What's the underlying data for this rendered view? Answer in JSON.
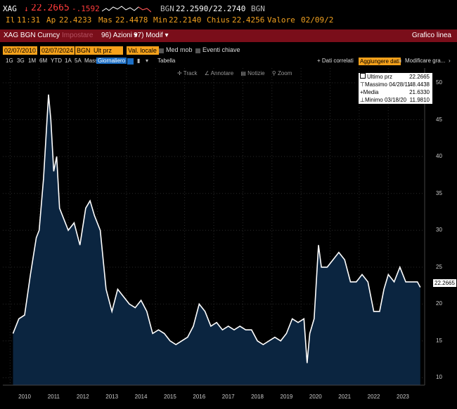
{
  "quote": {
    "ticker": "XAG",
    "arrow": "↓",
    "price": "22.2665",
    "change": "-.1592",
    "bidask_label": "BGN",
    "bidask": "22.2590/22.2740",
    "src": "BGN"
  },
  "stats": {
    "time": "11:31",
    "time_label": "Il",
    "open_label": "Ap",
    "open": "22.4233",
    "high_label": "Mas",
    "high": "22.4478",
    "low_label": "Min",
    "low": "22.2140",
    "close_label": "Chius",
    "close": "22.4256",
    "value_label": "Valore",
    "value": "02/09/2"
  },
  "menubar": {
    "security": "XAG BGN Curncy",
    "settings_hint": "Impostare",
    "actions": "Azioni",
    "modify": "Modif",
    "actions_num": "96)",
    "modify_num": "97)",
    "right_title": "Grafico linea"
  },
  "params": {
    "date_from": "02/07/2010",
    "date_to": "02/07/2024",
    "source": "BGN",
    "field": "Ult prz",
    "currency": "Val. locale",
    "moving_avg": "Med mob",
    "key_events": "Eventi chiave"
  },
  "toolbar": {
    "ranges": [
      "1G",
      "3G",
      "1M",
      "6M",
      "YTD",
      "1A",
      "5A",
      "Mass"
    ],
    "period": "Giornaliero",
    "table": "Tabella",
    "related": "+ Dati correlati",
    "add_data": "Aggiungere dati",
    "modify_chart": "Modificare gra..."
  },
  "tools": {
    "track": "Track",
    "annotate": "Annotare",
    "news": "Notizie",
    "zoom": "Zoom"
  },
  "legend": {
    "last_label": "Ultimo prz",
    "last_value": "22.2665",
    "high_label": "Massimo 04/28/11",
    "high_value": "48.4438",
    "avg_label": "Media",
    "avg_value": "21.6330",
    "low_label": "Minimo 03/18/20",
    "low_value": "11.9810"
  },
  "last_price_tag": "22.2665",
  "colors": {
    "background": "#000000",
    "area_fill": "#0b2540",
    "line": "#ffffff",
    "menubar": "#7a0e1a",
    "accent_orange": "#f7a21b",
    "down": "#ff3b3b"
  },
  "chart_data": {
    "type": "area",
    "series": [
      {
        "name": "Ultimo prz",
        "x": [
          2010.1,
          2010.3,
          2010.5,
          2010.7,
          2010.9,
          2011.0,
          2011.15,
          2011.32,
          2011.4,
          2011.5,
          2011.6,
          2011.7,
          2011.8,
          2012.0,
          2012.2,
          2012.4,
          2012.6,
          2012.75,
          2012.9,
          2013.1,
          2013.3,
          2013.5,
          2013.7,
          2013.9,
          2014.1,
          2014.3,
          2014.5,
          2014.7,
          2014.9,
          2015.1,
          2015.3,
          2015.5,
          2015.7,
          2015.9,
          2016.1,
          2016.3,
          2016.5,
          2016.7,
          2016.9,
          2017.1,
          2017.3,
          2017.5,
          2017.7,
          2017.9,
          2018.1,
          2018.3,
          2018.5,
          2018.7,
          2018.9,
          2019.1,
          2019.3,
          2019.5,
          2019.7,
          2019.9,
          2020.1,
          2020.21,
          2020.3,
          2020.45,
          2020.6,
          2020.7,
          2020.9,
          2021.1,
          2021.3,
          2021.5,
          2021.7,
          2021.9,
          2022.1,
          2022.3,
          2022.5,
          2022.7,
          2022.85,
          2023.0,
          2023.2,
          2023.4,
          2023.6,
          2023.8,
          2024.0,
          2024.1
        ],
        "y": [
          16,
          18,
          18.5,
          24,
          29,
          30,
          37,
          48.4,
          45,
          38,
          40,
          33,
          32,
          30,
          31,
          28,
          33,
          34,
          32,
          30,
          22,
          19,
          22,
          21,
          20,
          19.5,
          20.5,
          19,
          16,
          16.5,
          16,
          15,
          14.5,
          15,
          15.5,
          17,
          20,
          19,
          17,
          17.5,
          16.5,
          17,
          16.5,
          17,
          16.5,
          16.5,
          15,
          14.5,
          15,
          15.5,
          15,
          16,
          18,
          17.5,
          18,
          12,
          16,
          18,
          28,
          25,
          25,
          26,
          27,
          26,
          23,
          23,
          24,
          23,
          19,
          19,
          22,
          24,
          23,
          25,
          23,
          23,
          23,
          22.27
        ]
      }
    ],
    "xlim": [
      2009.75,
      2024.25
    ],
    "ylim": [
      9,
      52
    ],
    "yticks": [
      10,
      15,
      20,
      25,
      30,
      35,
      40,
      45,
      50
    ],
    "xticks": [
      "2010",
      "2011",
      "2012",
      "2013",
      "2014",
      "2015",
      "2016",
      "2017",
      "2018",
      "2019",
      "2020",
      "2021",
      "2022",
      "2023"
    ],
    "grid": true,
    "legend": "top-right"
  }
}
